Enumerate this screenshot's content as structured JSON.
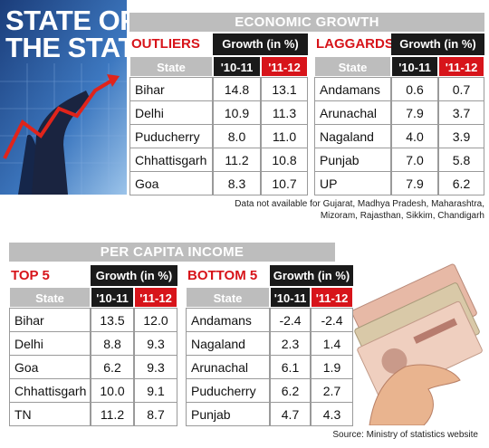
{
  "header": {
    "title_lines": [
      "STATE OF",
      "THE STATES"
    ]
  },
  "economic_growth": {
    "title": "ECONOMIC GROWTH",
    "tables": [
      {
        "label": "OUTLIERS",
        "growth_header": "Growth (in %)",
        "columns": [
          "State",
          "'10-11",
          "'11-12"
        ],
        "rows": [
          [
            "Bihar",
            "14.8",
            "13.1"
          ],
          [
            "Delhi",
            "10.9",
            "11.3"
          ],
          [
            "Puducherry",
            "8.0",
            "11.0"
          ],
          [
            "Chhattisgarh",
            "11.2",
            "10.8"
          ],
          [
            "Goa",
            "8.3",
            "10.7"
          ]
        ]
      },
      {
        "label": "LAGGARDS",
        "growth_header": "Growth (in %)",
        "columns": [
          "State",
          "'10-11",
          "'11-12"
        ],
        "rows": [
          [
            "Andamans",
            "0.6",
            "0.7"
          ],
          [
            "Arunachal",
            "7.9",
            "3.7"
          ],
          [
            "Nagaland",
            "4.0",
            "3.9"
          ],
          [
            "Punjab",
            "7.0",
            "5.8"
          ],
          [
            "UP",
            "7.9",
            "6.2"
          ]
        ]
      }
    ],
    "note_lines": [
      "Data not available for Gujarat, Madhya Pradesh, Maharashtra,",
      "Mizoram, Rajasthan, Sikkim, Chandigarh"
    ]
  },
  "per_capita_income": {
    "title": "PER CAPITA INCOME",
    "tables": [
      {
        "label": "TOP 5",
        "growth_header": "Growth (in %)",
        "columns": [
          "State",
          "'10-11",
          "'11-12"
        ],
        "rows": [
          [
            "Bihar",
            "13.5",
            "12.0"
          ],
          [
            "Delhi",
            "8.8",
            "9.3"
          ],
          [
            "Goa",
            "6.2",
            "9.3"
          ],
          [
            "Chhattisgarh",
            "10.0",
            "9.1"
          ],
          [
            "TN",
            "11.2",
            "8.7"
          ]
        ]
      },
      {
        "label": "BOTTOM 5",
        "growth_header": "Growth (in %)",
        "columns": [
          "State",
          "'10-11",
          "'11-12"
        ],
        "rows": [
          [
            "Andamans",
            "-2.4",
            "-2.4"
          ],
          [
            "Nagaland",
            "2.3",
            "1.4"
          ],
          [
            "Arunachal",
            "6.1",
            "1.9"
          ],
          [
            "Puducherry",
            "6.2",
            "2.7"
          ],
          [
            "Punjab",
            "4.7",
            "4.3"
          ]
        ]
      }
    ]
  },
  "source": "Source: Ministry of statistics website"
}
